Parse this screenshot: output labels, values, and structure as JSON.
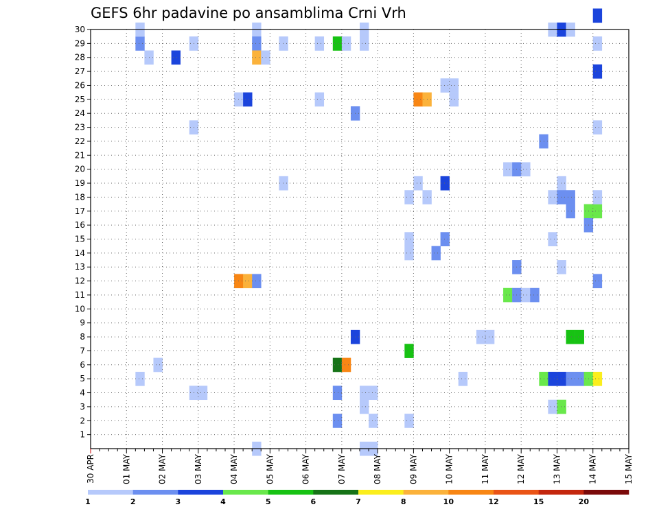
{
  "chart_data": {
    "type": "heatmap",
    "title": "GEFS 6hr padavine po ansamblima Crni Vrh",
    "xlabel": "",
    "ylabel": "",
    "x_tick_labels": [
      "30 APR",
      "01 MAY",
      "02 MAY",
      "03 MAY",
      "04 MAY",
      "05 MAY",
      "06 MAY",
      "07 MAY",
      "08 MAY",
      "09 MAY",
      "10 MAY",
      "11 MAY",
      "12 MAY",
      "13 MAY",
      "14 MAY",
      "15 MAY"
    ],
    "x_range_days": [
      0,
      15
    ],
    "time_step_hours": 6,
    "y_ticks": [
      1,
      2,
      3,
      4,
      5,
      6,
      7,
      8,
      9,
      10,
      11,
      12,
      13,
      14,
      15,
      16,
      17,
      18,
      19,
      20,
      21,
      22,
      23,
      24,
      25,
      26,
      27,
      28,
      29,
      30
    ],
    "y_range": [
      0,
      30
    ],
    "grid": true,
    "colorbar": {
      "placement": "bottom",
      "levels": [
        "1",
        "2",
        "3",
        "4",
        "5",
        "6",
        "7",
        "8",
        "10",
        "12",
        "15",
        "20"
      ],
      "colors": [
        "#b6c9fb",
        "#6c8ff0",
        "#1b44dc",
        "#69e84b",
        "#17c213",
        "#167317",
        "#fbee1d",
        "#fbb23b",
        "#f88614",
        "#ea5416",
        "#c4270e",
        "#7b0a0a"
      ]
    },
    "cells_note": "each cell: [time_step_index (6h steps from 30 APR 00Z), ensemble_member, color_class_index]",
    "cells": [
      [
        18,
        30,
        0
      ],
      [
        18,
        29,
        1
      ],
      [
        18,
        28,
        7
      ],
      [
        19,
        28,
        0
      ],
      [
        11,
        29,
        0
      ],
      [
        25,
        29,
        0
      ],
      [
        25,
        25,
        0
      ],
      [
        21,
        29,
        0
      ],
      [
        27,
        29,
        4
      ],
      [
        28,
        29,
        0
      ],
      [
        29,
        24,
        1
      ],
      [
        9,
        28,
        2
      ],
      [
        6,
        28,
        0
      ],
      [
        5,
        29,
        1
      ],
      [
        5,
        30,
        0
      ],
      [
        16,
        25,
        0
      ],
      [
        17,
        25,
        2
      ],
      [
        40,
        26,
        0
      ],
      [
        40,
        25,
        0
      ],
      [
        5,
        5,
        0
      ],
      [
        30,
        29,
        0
      ],
      [
        30,
        30,
        0
      ],
      [
        36,
        25,
        8
      ],
      [
        37,
        25,
        7
      ],
      [
        39,
        19,
        2
      ],
      [
        39,
        15,
        1
      ],
      [
        37,
        18,
        0
      ],
      [
        39,
        26,
        0
      ],
      [
        11,
        23,
        0
      ],
      [
        21,
        19,
        0
      ],
      [
        16,
        12,
        8
      ],
      [
        17,
        12,
        7
      ],
      [
        18,
        12,
        1
      ],
      [
        36,
        19,
        0
      ],
      [
        35,
        18,
        0
      ],
      [
        35,
        15,
        0
      ],
      [
        43,
        8,
        0
      ],
      [
        44,
        8,
        0
      ],
      [
        46,
        11,
        3
      ],
      [
        47,
        11,
        1
      ],
      [
        48,
        11,
        0
      ],
      [
        49,
        11,
        1
      ],
      [
        46,
        20,
        0
      ],
      [
        47,
        20,
        1
      ],
      [
        48,
        20,
        0
      ],
      [
        47,
        13,
        1
      ],
      [
        50,
        22,
        1
      ],
      [
        51,
        30,
        0
      ],
      [
        52,
        30,
        2
      ],
      [
        53,
        30,
        0
      ],
      [
        52,
        19,
        0
      ],
      [
        51,
        18,
        0
      ],
      [
        52,
        18,
        1
      ],
      [
        53,
        18,
        1
      ],
      [
        53,
        17,
        1
      ],
      [
        51,
        15,
        0
      ],
      [
        52,
        13,
        0
      ],
      [
        50,
        5,
        3
      ],
      [
        51,
        5,
        2
      ],
      [
        52,
        5,
        2
      ],
      [
        53,
        5,
        1
      ],
      [
        54,
        5,
        1
      ],
      [
        55,
        5,
        3
      ],
      [
        56,
        5,
        6
      ],
      [
        51,
        3,
        0
      ],
      [
        52,
        3,
        3
      ],
      [
        53,
        8,
        4
      ],
      [
        54,
        8,
        4
      ],
      [
        55,
        17,
        3
      ],
      [
        56,
        17,
        3
      ],
      [
        55,
        16,
        1
      ],
      [
        56,
        29,
        0
      ],
      [
        56,
        31,
        2
      ],
      [
        56,
        27,
        2
      ],
      [
        56,
        23,
        0
      ],
      [
        56,
        18,
        0
      ],
      [
        56,
        12,
        1
      ],
      [
        7,
        6,
        0
      ],
      [
        11,
        4,
        0
      ],
      [
        12,
        4,
        0
      ],
      [
        27,
        6,
        5
      ],
      [
        28,
        6,
        8
      ],
      [
        27,
        4,
        1
      ],
      [
        27,
        2,
        1
      ],
      [
        30,
        3,
        0
      ],
      [
        29,
        8,
        2
      ],
      [
        30,
        4,
        0
      ],
      [
        31,
        4,
        0
      ],
      [
        31,
        2,
        0
      ],
      [
        30,
        0,
        0
      ],
      [
        31,
        0,
        0
      ],
      [
        18,
        0,
        0
      ],
      [
        35,
        7,
        4
      ],
      [
        35,
        2,
        0
      ],
      [
        41,
        5,
        0
      ],
      [
        38,
        14,
        1
      ],
      [
        35,
        14,
        0
      ]
    ]
  }
}
